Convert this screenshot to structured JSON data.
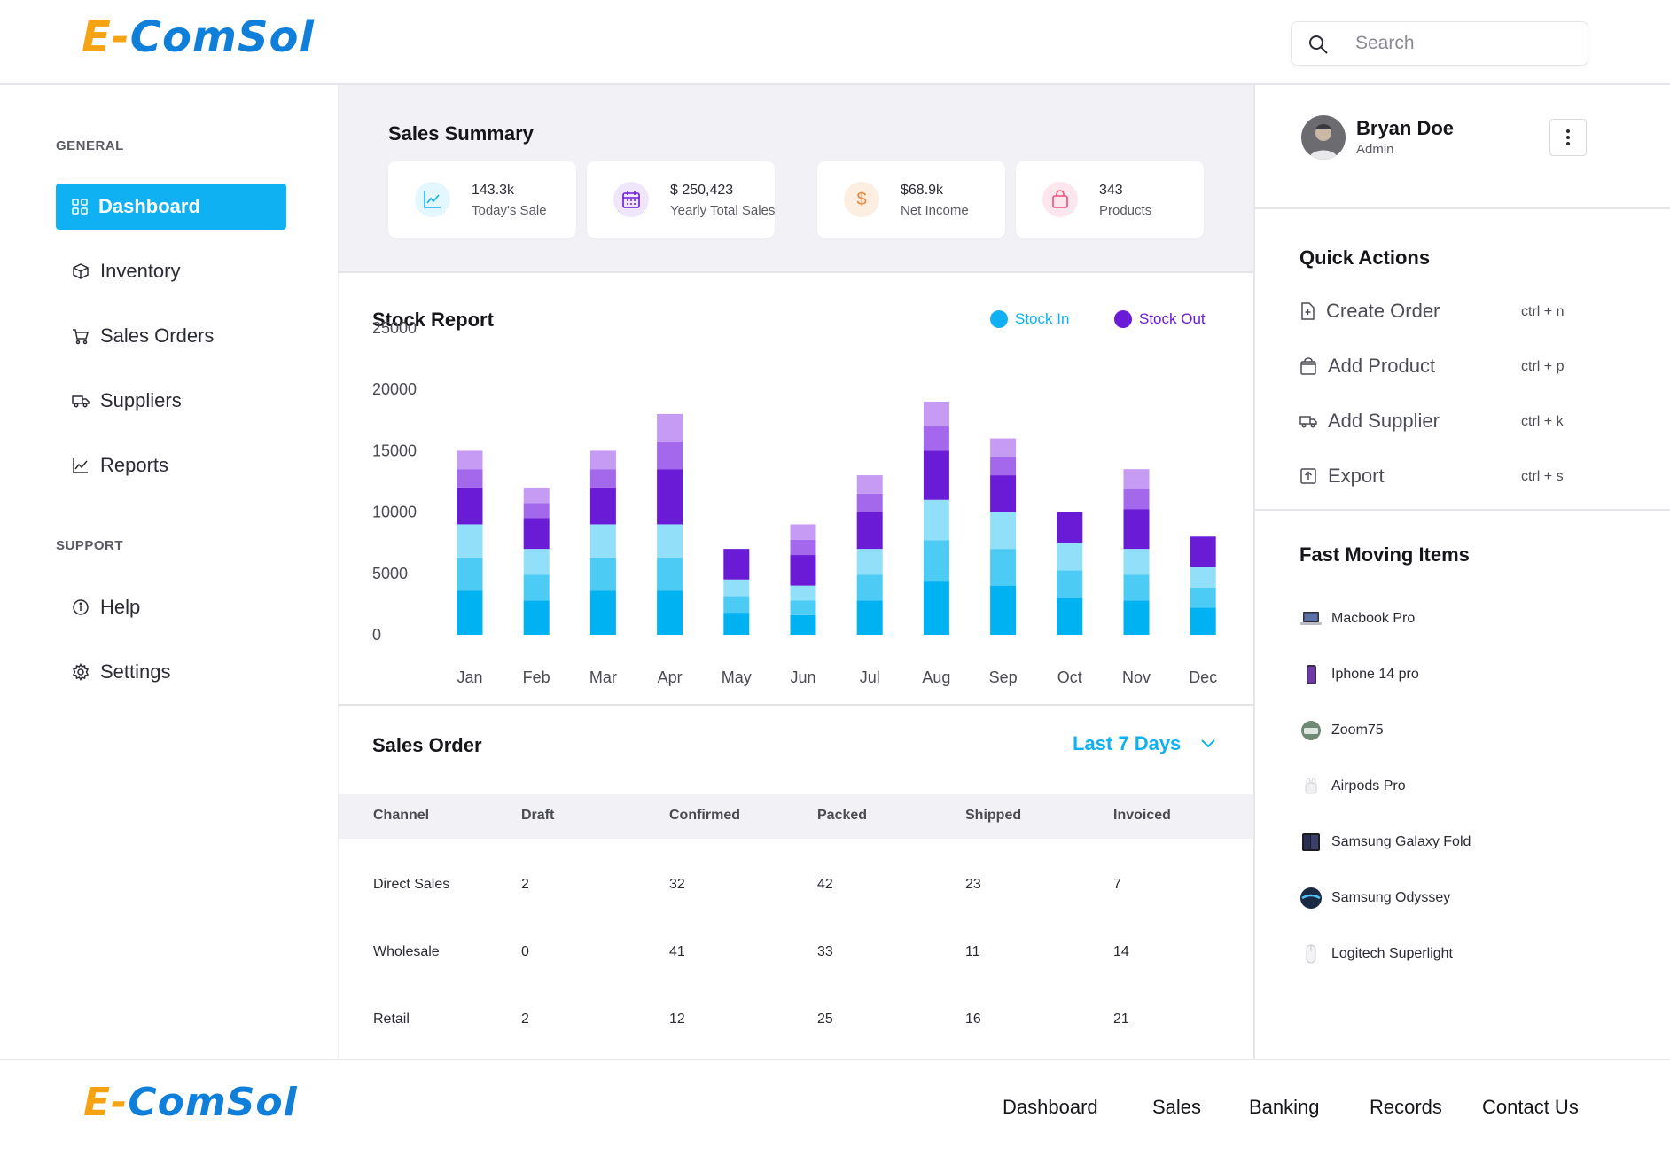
{
  "brand": {
    "name_part1": "E-",
    "name_part2": "ComSol",
    "color_primary": "#f5a313",
    "color_secondary": "#0f7fd9"
  },
  "search": {
    "placeholder": "Search"
  },
  "sidebar": {
    "general_label": "GENERAL",
    "support_label": "SUPPORT",
    "items": [
      {
        "label": "Dashboard",
        "icon": "grid-icon",
        "active": true
      },
      {
        "label": "Inventory",
        "icon": "box-icon"
      },
      {
        "label": "Sales Orders",
        "icon": "cart-icon"
      },
      {
        "label": "Suppliers",
        "icon": "truck-icon"
      },
      {
        "label": "Reports",
        "icon": "chart-icon"
      }
    ],
    "support_items": [
      {
        "label": "Help",
        "icon": "info-icon"
      },
      {
        "label": "Settings",
        "icon": "gear-icon"
      }
    ]
  },
  "summary": {
    "title": "Sales Summary",
    "cards": [
      {
        "value": "143.3k",
        "label": "Today's Sale",
        "icon": "trend-icon",
        "color": "#0fb1f2"
      },
      {
        "value": "$ 250,423",
        "label": "Yearly Total Sales",
        "icon": "calendar-icon",
        "color": "#6a1bd6"
      },
      {
        "value": "$68.9k",
        "label": "Net Income",
        "icon": "dollar-icon",
        "color": "#e8833a"
      },
      {
        "value": "343",
        "label": "Products",
        "icon": "bag-icon",
        "color": "#ef4f7a"
      }
    ]
  },
  "stock_report": {
    "title": "Stock Report",
    "legend": [
      {
        "label": "Stock In",
        "color": "#0fb1f2"
      },
      {
        "label": "Stock Out",
        "color": "#6a1bd6"
      }
    ]
  },
  "chart_data": {
    "type": "bar",
    "stacked": true,
    "title": "Stock Report",
    "categories": [
      "Jan",
      "Feb",
      "Mar",
      "Apr",
      "May",
      "Jun",
      "Jul",
      "Aug",
      "Sep",
      "Oct",
      "Nov",
      "Dec"
    ],
    "yticks": [
      0,
      5000,
      10000,
      15000,
      20000,
      25000
    ],
    "ylim": [
      0,
      25000
    ],
    "series": [
      {
        "name": "Stock In",
        "values": [
          9000,
          7000,
          9000,
          9000,
          4500,
          4000,
          7000,
          11000,
          10000,
          7500,
          7000,
          5500
        ]
      },
      {
        "name": "Stock Out",
        "values": [
          6000,
          5000,
          6000,
          9000,
          2500,
          5000,
          6000,
          8000,
          6000,
          2500,
          6500,
          2500
        ]
      }
    ],
    "colors": {
      "Stock In": [
        "#00b2f2",
        "#4ccbf5",
        "#92dffa"
      ],
      "Stock Out": [
        "#6a1bd6",
        "#a468ec",
        "#c69bf4"
      ]
    }
  },
  "sales_order": {
    "title": "Sales Order",
    "range": "Last 7 Days",
    "columns": [
      "Channel",
      "Draft",
      "Confirmed",
      "Packed",
      "Shipped",
      "Invoiced"
    ],
    "rows": [
      [
        "Direct Sales",
        "2",
        "32",
        "42",
        "23",
        "7"
      ],
      [
        "Wholesale",
        "0",
        "41",
        "33",
        "11",
        "14"
      ],
      [
        "Retail",
        "2",
        "12",
        "25",
        "16",
        "21"
      ]
    ]
  },
  "profile": {
    "name": "Bryan Doe",
    "role": "Admin"
  },
  "quick_actions": {
    "title": "Quick Actions",
    "items": [
      {
        "label": "Create Order",
        "shortcut": "ctrl + n",
        "icon": "file-plus-icon"
      },
      {
        "label": "Add Product",
        "shortcut": "ctrl + p",
        "icon": "bag-icon"
      },
      {
        "label": "Add Supplier",
        "shortcut": "ctrl + k",
        "icon": "truck-icon"
      },
      {
        "label": "Export",
        "shortcut": "ctrl + s",
        "icon": "export-icon"
      }
    ]
  },
  "fast_moving": {
    "title": "Fast Moving Items",
    "items": [
      {
        "label": "Macbook Pro",
        "icon": "laptop-icon"
      },
      {
        "label": "Iphone 14 pro",
        "icon": "phone-icon"
      },
      {
        "label": "Zoom75",
        "icon": "keyboard-icon"
      },
      {
        "label": "Airpods Pro",
        "icon": "earbuds-icon"
      },
      {
        "label": "Samsung Galaxy Fold",
        "icon": "foldable-phone-icon"
      },
      {
        "label": "Samsung Odyssey",
        "icon": "monitor-icon"
      },
      {
        "label": "Logitech Superlight",
        "icon": "mouse-icon"
      }
    ]
  },
  "footer": {
    "links": [
      "Dashboard",
      "Sales",
      "Banking",
      "Records",
      "Contact Us"
    ]
  }
}
